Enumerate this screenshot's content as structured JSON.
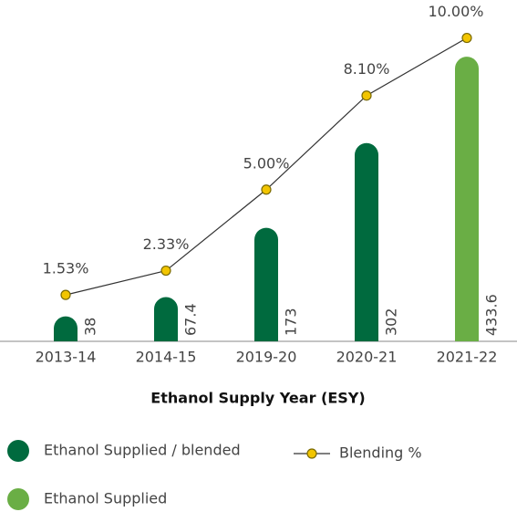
{
  "chart_data": {
    "type": "bar",
    "categories": [
      "2013-14",
      "2014-15",
      "2019-20",
      "2020-21",
      "2021-22"
    ],
    "x_label": "Ethanol Supply Year (ESY)",
    "ylim": [
      0,
      520
    ],
    "y2lim": [
      0,
      11.25
    ],
    "series": [
      {
        "name": "Ethanol Supplied / blended",
        "type": "bar",
        "color": "#006a3e",
        "values": [
          38,
          67.4,
          173,
          302,
          null
        ]
      },
      {
        "name": "Ethanol Supplied",
        "type": "bar",
        "color": "#6aae45",
        "values": [
          null,
          null,
          null,
          null,
          433.6
        ]
      },
      {
        "name": "Blending %",
        "type": "line",
        "axis": "y2",
        "color": "#333333",
        "marker_color": "#f2c500",
        "values": [
          1.53,
          2.33,
          5.0,
          8.1,
          10.0
        ],
        "value_labels": [
          "1.53%",
          "2.33%",
          "5.00%",
          "8.10%",
          "10.00%"
        ]
      }
    ]
  }
}
